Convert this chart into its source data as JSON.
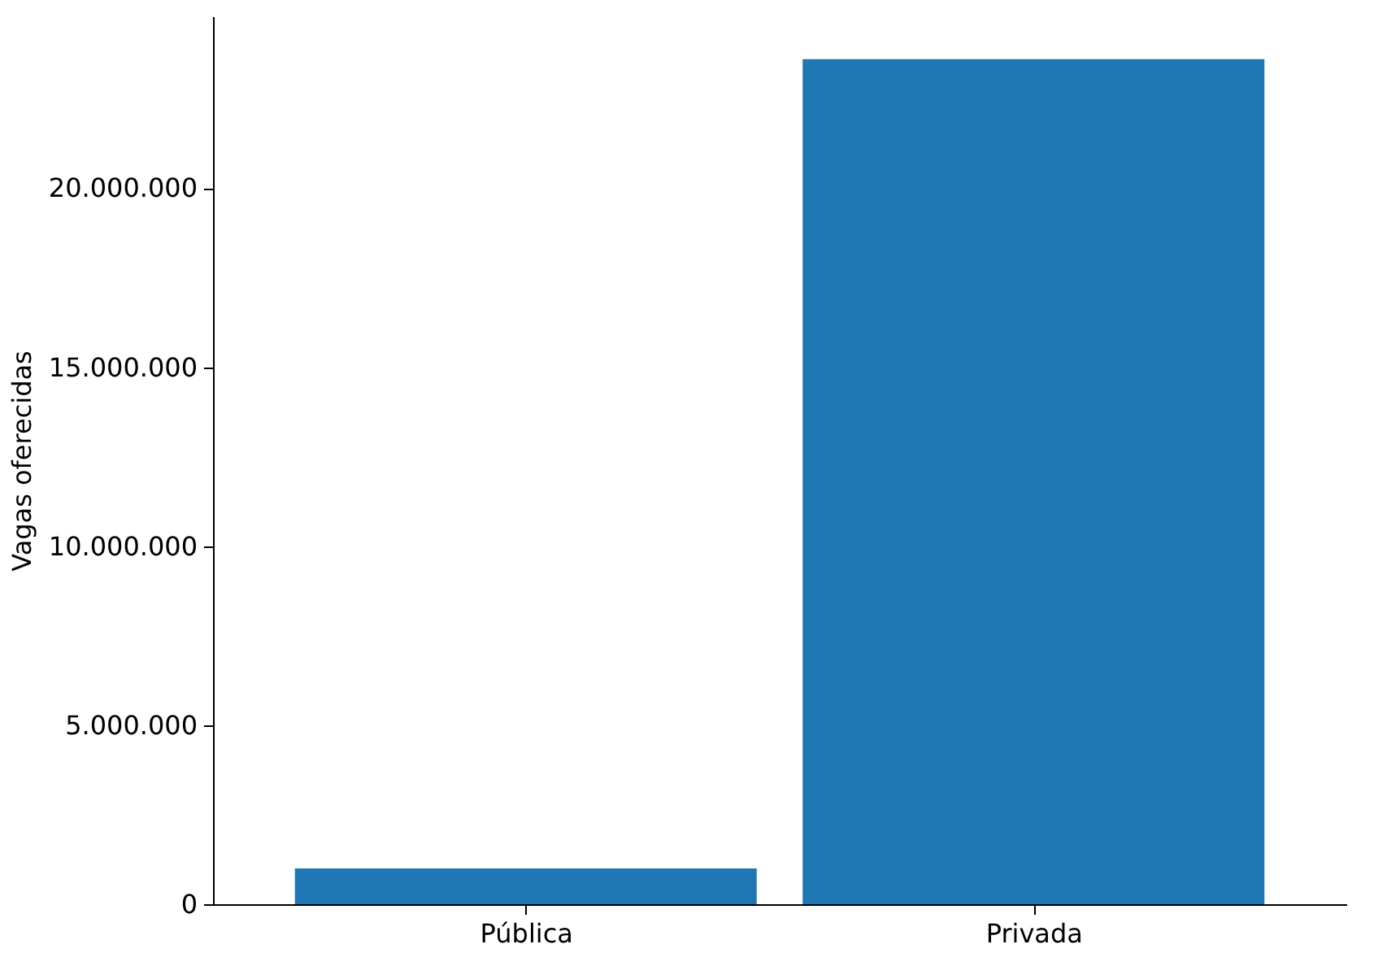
{
  "chart_data": {
    "type": "bar",
    "ylabel": "Vagas oferecidas",
    "categories": [
      "Pública",
      "Privada"
    ],
    "values": [
      1000000,
      23600000
    ],
    "color": "#1f77b4",
    "ylim": [
      0,
      24800000
    ],
    "yticks": [
      0,
      {
        "value": 5000000,
        "label": "5.000.000"
      },
      {
        "value": 10000000,
        "label": "10.000.000"
      },
      {
        "value": 15000000,
        "label": "15.000.000"
      },
      {
        "value": 20000000,
        "label": "20.000.000"
      }
    ],
    "grid": false
  }
}
